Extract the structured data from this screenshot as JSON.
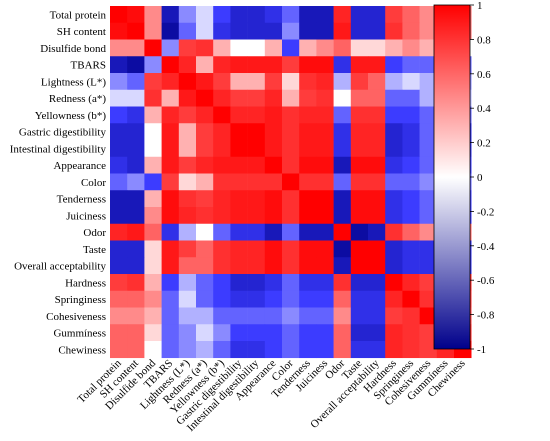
{
  "chart_data": {
    "type": "heatmap",
    "title": "",
    "variables": [
      "Total protein",
      "SH content",
      "Disulfide bond",
      "TBARS",
      "Lightness (L*)",
      "Redness (a*)",
      "Yellowness (b*)",
      "Gastric digestibility",
      "Intestinal digestibility",
      "Appearance",
      "Color",
      "Tenderness",
      "Juiciness",
      "Odor",
      "Taste",
      "Overall acceptability",
      "Hardness",
      "Springiness",
      "Cohesiveness",
      "Gummíness",
      "Chewiness"
    ],
    "values": [
      [
        1.0,
        0.9,
        0.3,
        -0.8,
        -0.3,
        -0.1,
        -0.5,
        -0.7,
        -0.7,
        -0.6,
        -0.4,
        -0.8,
        -0.8,
        0.7,
        -0.7,
        -0.7,
        0.5,
        0.4,
        0.3,
        0.4,
        0.4
      ],
      [
        0.9,
        1.0,
        0.3,
        -0.9,
        -0.4,
        -0.1,
        -0.6,
        -0.7,
        -0.7,
        -0.7,
        -0.3,
        -0.8,
        -0.8,
        0.8,
        -0.7,
        -0.7,
        0.6,
        0.4,
        0.3,
        0.4,
        0.4
      ],
      [
        0.3,
        0.3,
        1.0,
        -0.3,
        0.5,
        0.6,
        0.2,
        0.0,
        0.0,
        0.2,
        -0.5,
        0.2,
        0.3,
        0.4,
        0.1,
        0.1,
        0.2,
        0.3,
        0.2,
        0.1,
        0.0
      ],
      [
        -0.8,
        -0.9,
        -0.3,
        1.0,
        0.7,
        0.2,
        0.7,
        0.8,
        0.8,
        0.8,
        0.5,
        0.9,
        0.9,
        -0.6,
        0.8,
        0.8,
        -0.5,
        -0.4,
        -0.4,
        -0.4,
        -0.4
      ],
      [
        -0.3,
        -0.4,
        0.5,
        0.7,
        1.0,
        0.8,
        0.5,
        0.2,
        0.2,
        0.5,
        0.1,
        0.6,
        0.7,
        -0.2,
        0.5,
        0.4,
        -0.2,
        -0.1,
        -0.2,
        -0.3,
        -0.3
      ],
      [
        -0.1,
        -0.1,
        0.6,
        0.2,
        0.8,
        1.0,
        0.7,
        0.5,
        0.5,
        0.7,
        0.2,
        0.5,
        0.6,
        0.0,
        0.4,
        0.4,
        -0.4,
        -0.4,
        -0.2,
        -0.1,
        -0.2
      ],
      [
        -0.5,
        -0.6,
        0.2,
        0.7,
        0.5,
        0.7,
        1.0,
        0.7,
        0.7,
        0.8,
        0.6,
        0.7,
        0.7,
        -0.4,
        0.6,
        0.6,
        -0.5,
        -0.5,
        -0.4,
        -0.3,
        -0.4
      ],
      [
        -0.7,
        -0.7,
        0.0,
        0.8,
        0.2,
        0.5,
        0.7,
        1.0,
        1.0,
        0.8,
        0.6,
        0.8,
        0.8,
        -0.6,
        0.7,
        0.7,
        -0.7,
        -0.6,
        -0.4,
        -0.5,
        -0.6
      ],
      [
        -0.7,
        -0.7,
        0.0,
        0.8,
        0.2,
        0.5,
        0.7,
        1.0,
        1.0,
        0.8,
        0.6,
        0.8,
        0.8,
        -0.6,
        0.7,
        0.7,
        -0.7,
        -0.6,
        -0.4,
        -0.5,
        -0.6
      ],
      [
        -0.6,
        -0.7,
        0.2,
        0.8,
        0.5,
        0.7,
        0.8,
        0.8,
        0.8,
        1.0,
        0.6,
        0.9,
        0.9,
        -0.8,
        0.9,
        0.9,
        -0.6,
        -0.5,
        -0.4,
        -0.5,
        -0.5
      ],
      [
        -0.4,
        -0.3,
        -0.5,
        0.5,
        0.1,
        0.2,
        0.6,
        0.6,
        0.6,
        0.6,
        1.0,
        0.6,
        0.6,
        -0.4,
        0.6,
        0.6,
        -0.4,
        -0.4,
        -0.3,
        -0.4,
        -0.4
      ],
      [
        -0.8,
        -0.8,
        0.2,
        0.9,
        0.6,
        0.5,
        0.7,
        0.8,
        0.8,
        0.9,
        0.6,
        1.0,
        1.0,
        -0.8,
        0.9,
        0.9,
        -0.6,
        -0.5,
        -0.4,
        -0.5,
        -0.5
      ],
      [
        -0.8,
        -0.8,
        0.3,
        0.9,
        0.7,
        0.6,
        0.7,
        0.8,
        0.8,
        0.9,
        0.6,
        1.0,
        1.0,
        -0.8,
        0.9,
        0.9,
        -0.6,
        -0.5,
        -0.4,
        -0.5,
        -0.5
      ],
      [
        0.7,
        0.8,
        0.4,
        -0.6,
        -0.2,
        0.0,
        -0.4,
        -0.6,
        -0.6,
        -0.8,
        -0.4,
        -0.8,
        -0.8,
        1.0,
        -0.9,
        -0.8,
        0.6,
        0.4,
        0.3,
        0.4,
        0.4
      ],
      [
        -0.7,
        -0.7,
        0.1,
        0.8,
        0.5,
        0.4,
        0.6,
        0.7,
        0.7,
        0.9,
        0.6,
        0.9,
        0.9,
        -0.9,
        1.0,
        1.0,
        -0.7,
        -0.6,
        -0.6,
        -0.7,
        -0.6
      ],
      [
        -0.7,
        -0.7,
        0.1,
        0.8,
        0.4,
        0.4,
        0.6,
        0.7,
        0.7,
        0.9,
        0.6,
        0.9,
        0.9,
        -0.8,
        1.0,
        1.0,
        -0.7,
        -0.6,
        -0.6,
        -0.7,
        -0.6
      ],
      [
        0.5,
        0.6,
        0.2,
        -0.5,
        -0.2,
        -0.4,
        -0.5,
        -0.7,
        -0.7,
        -0.6,
        -0.4,
        -0.6,
        -0.6,
        0.6,
        -0.7,
        -0.7,
        1.0,
        0.7,
        0.5,
        0.7,
        0.7
      ],
      [
        0.4,
        0.4,
        0.3,
        -0.4,
        -0.1,
        -0.4,
        -0.5,
        -0.6,
        -0.6,
        -0.5,
        -0.4,
        -0.5,
        -0.5,
        0.4,
        -0.6,
        -0.6,
        0.7,
        1.0,
        0.6,
        0.6,
        0.6
      ],
      [
        0.3,
        0.3,
        0.2,
        -0.4,
        -0.2,
        -0.2,
        -0.4,
        -0.4,
        -0.4,
        -0.4,
        -0.3,
        -0.4,
        -0.4,
        0.3,
        -0.6,
        -0.6,
        0.5,
        0.6,
        1.0,
        0.5,
        0.5
      ],
      [
        0.4,
        0.4,
        0.1,
        -0.4,
        -0.3,
        -0.1,
        -0.3,
        -0.5,
        -0.5,
        -0.5,
        -0.4,
        -0.5,
        -0.5,
        0.4,
        -0.7,
        -0.7,
        0.7,
        0.6,
        0.5,
        1.0,
        0.7
      ],
      [
        0.4,
        0.4,
        0.0,
        -0.4,
        -0.3,
        -0.2,
        -0.4,
        -0.6,
        -0.6,
        -0.5,
        -0.4,
        -0.5,
        -0.5,
        0.4,
        -0.6,
        -0.6,
        0.7,
        0.6,
        0.5,
        0.7,
        1.0
      ]
    ],
    "colorbar": {
      "range": [
        -1,
        1
      ],
      "ticks": [
        "1",
        "0.8",
        "0.6",
        "0.4",
        "0.2",
        "0",
        "-0.2",
        "-0.4",
        "-0.6",
        "-0.8",
        "-1"
      ],
      "colors": {
        "negative": "#00008b",
        "mid_negative": "#3c3cff",
        "zero": "#ffffff",
        "mid_positive": "#ff3c3c",
        "positive": "#ff0000"
      }
    },
    "legend_placement": "right"
  }
}
